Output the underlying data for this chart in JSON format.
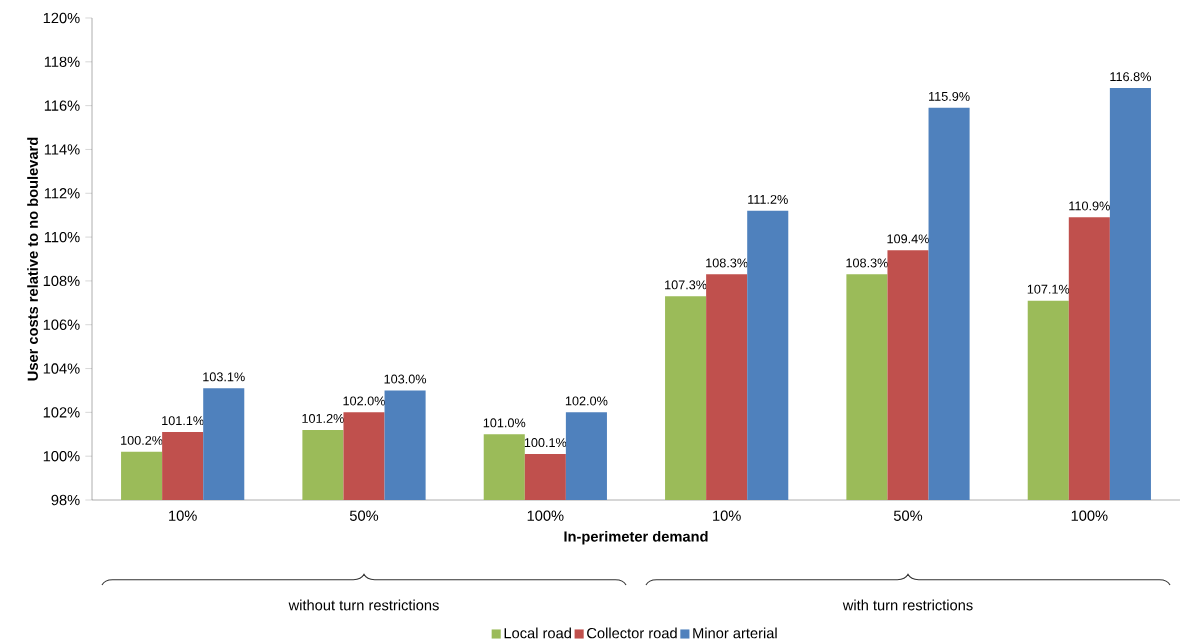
{
  "chart_data": {
    "type": "bar",
    "categories": [
      "10%",
      "50%",
      "100%",
      "10%",
      "50%",
      "100%"
    ],
    "xlabel": "In-perimeter demand",
    "ylabel": "User costs relative to no boulevard",
    "series": [
      {
        "name": "Local road",
        "color": "#9bbb59",
        "values": [
          100.2,
          101.2,
          101.0,
          107.3,
          108.3,
          107.1
        ],
        "value_labels": [
          "100.2%",
          "101.2%",
          "101.0%",
          "107.3%",
          "108.3%",
          "107.1%"
        ]
      },
      {
        "name": "Collector road",
        "color": "#c0504d",
        "values": [
          101.1,
          102.0,
          100.1,
          108.3,
          109.4,
          110.9
        ],
        "value_labels": [
          "101.1%",
          "102.0%",
          "100.1%",
          "108.3%",
          "109.4%",
          "110.9%"
        ]
      },
      {
        "name": "Minor arterial",
        "color": "#4f81bd",
        "values": [
          103.1,
          103.0,
          102.0,
          111.2,
          115.9,
          116.8
        ],
        "value_labels": [
          "103.1%",
          "103.0%",
          "102.0%",
          "111.2%",
          "115.9%",
          "116.8%"
        ]
      }
    ],
    "ylim": [
      98,
      120
    ],
    "yticks": [
      {
        "value": 98,
        "label": "98%"
      },
      {
        "value": 100,
        "label": "100%"
      },
      {
        "value": 102,
        "label": "102%"
      },
      {
        "value": 104,
        "label": "104%"
      },
      {
        "value": 106,
        "label": "106%"
      },
      {
        "value": 108,
        "label": "108%"
      },
      {
        "value": 110,
        "label": "110%"
      },
      {
        "value": 112,
        "label": "112%"
      },
      {
        "value": 114,
        "label": "114%"
      },
      {
        "value": 116,
        "label": "116%"
      },
      {
        "value": 118,
        "label": "118%"
      },
      {
        "value": 120,
        "label": "120%"
      }
    ],
    "annotations": [
      "without turn restrictions",
      "with turn restrictions"
    ],
    "grid": false,
    "legend": "bottom"
  }
}
